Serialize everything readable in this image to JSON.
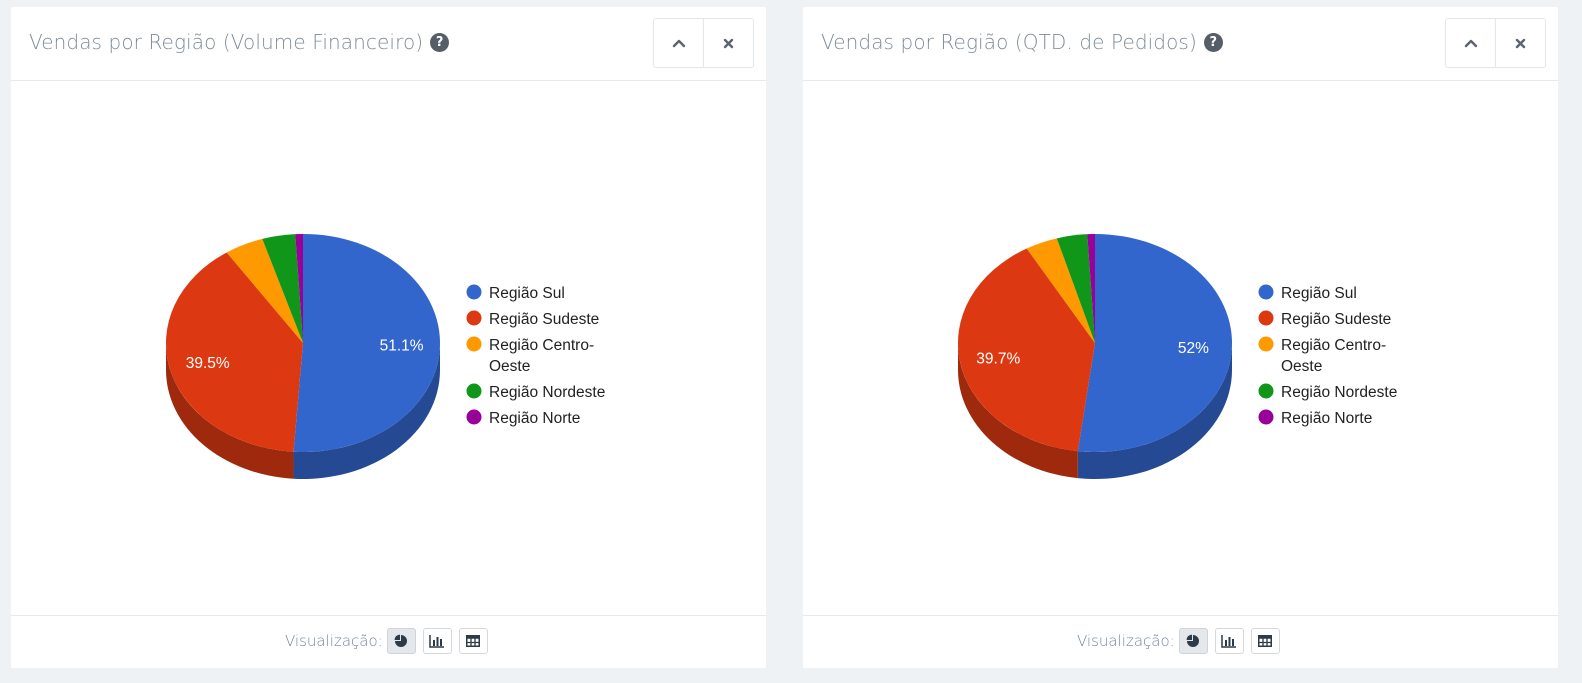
{
  "colors": {
    "sul": "#3366cc",
    "sudeste": "#dc3912",
    "centro_oeste": "#ff9900",
    "nordeste": "#109618",
    "norte": "#990099"
  },
  "panels": [
    {
      "title": "Vendas por Região (Volume Financeiro)",
      "help_icon": "?",
      "collapse_icon": "chevron-up-icon",
      "close_icon": "close-icon",
      "footer_label": "Visualização:",
      "view_buttons": [
        "pie-chart-icon",
        "bar-chart-icon",
        "table-icon"
      ]
    },
    {
      "title": "Vendas por Região (QTD. de Pedidos)",
      "help_icon": "?",
      "collapse_icon": "chevron-up-icon",
      "close_icon": "close-icon",
      "footer_label": "Visualização:",
      "view_buttons": [
        "pie-chart-icon",
        "bar-chart-icon",
        "table-icon"
      ]
    }
  ],
  "chart_data": [
    {
      "type": "pie",
      "is3D": true,
      "legend_position": "right",
      "series": [
        {
          "name": "Região Sul",
          "value": 51.1,
          "label": "51.1%"
        },
        {
          "name": "Região Sudeste",
          "value": 39.5,
          "label": "39.5%"
        },
        {
          "name": "Região Centro-Oeste",
          "value": 4.6,
          "label": ""
        },
        {
          "name": "Região Nordeste",
          "value": 3.9,
          "label": ""
        },
        {
          "name": "Região Norte",
          "value": 0.9,
          "label": ""
        }
      ]
    },
    {
      "type": "pie",
      "is3D": true,
      "legend_position": "right",
      "series": [
        {
          "name": "Região Sul",
          "value": 52,
          "label": "52%"
        },
        {
          "name": "Região Sudeste",
          "value": 39.7,
          "label": "39.7%"
        },
        {
          "name": "Região Centro-Oeste",
          "value": 3.8,
          "label": ""
        },
        {
          "name": "Região Nordeste",
          "value": 3.6,
          "label": ""
        },
        {
          "name": "Região Norte",
          "value": 0.9,
          "label": ""
        }
      ]
    }
  ]
}
